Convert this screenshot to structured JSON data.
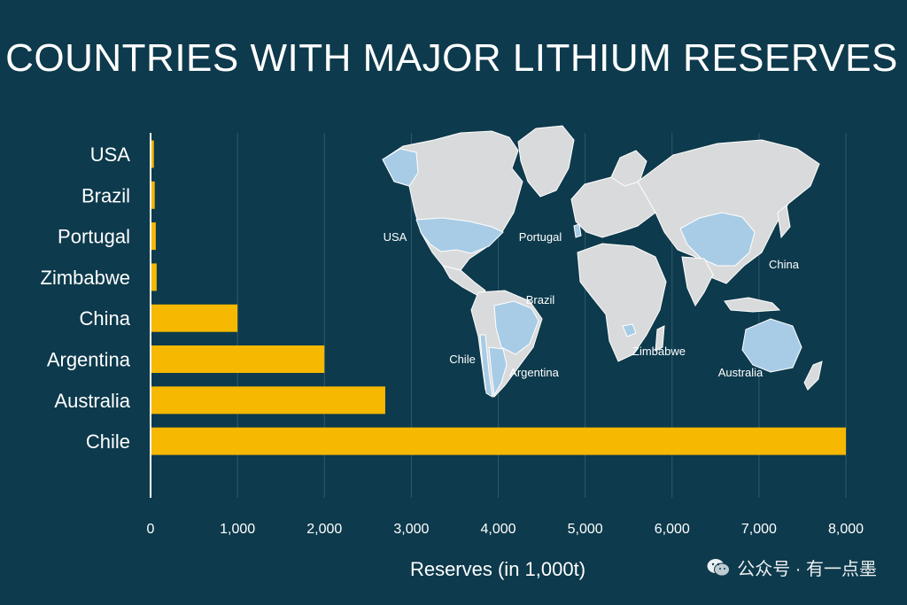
{
  "chart_data": {
    "type": "bar",
    "orientation": "horizontal",
    "title": "COUNTRIES WITH MAJOR LITHIUM RESERVES",
    "xlabel": "Reserves (in 1,000t)",
    "ylabel": "",
    "xlim": [
      0,
      8000
    ],
    "xticks": [
      0,
      1000,
      2000,
      3000,
      4000,
      5000,
      6000,
      7000,
      8000
    ],
    "xtick_labels": [
      "0",
      "1,000",
      "2,000",
      "3,000",
      "4,000",
      "5,000",
      "6,000",
      "7,000",
      "8,000"
    ],
    "grid": "vertical",
    "categories": [
      "USA",
      "Brazil",
      "Portugal",
      "Zimbabwe",
      "China",
      "Argentina",
      "Australia",
      "Chile"
    ],
    "values": [
      38,
      48,
      60,
      70,
      1000,
      2000,
      2700,
      8000
    ],
    "bar_color": "#f6b800",
    "background_color": "#0d3a4c",
    "map_labels": [
      "USA",
      "Portugal",
      "China",
      "Brazil",
      "Chile",
      "Argentina",
      "Zimbabwe",
      "Australia"
    ],
    "map_land_color": "#d9dadb",
    "map_highlight_color": "#a8cce6"
  },
  "watermark": {
    "text": "公众号 · 有一点墨",
    "icon": "wechat-icon"
  }
}
